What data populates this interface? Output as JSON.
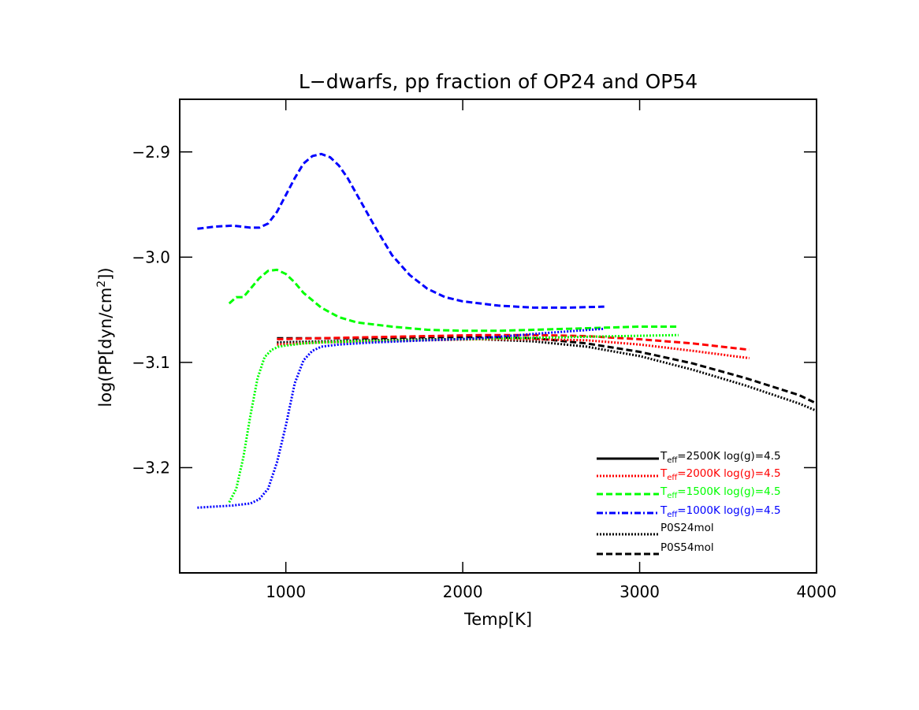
{
  "chart_data": {
    "type": "line",
    "title": "L−dwarfs, pp fraction of OP24 and OP54",
    "xlabel": "Temp[K]",
    "ylabel_parts": {
      "main": "log(PP[dyn/cm",
      "sup": "2",
      "end": "])"
    },
    "xlim": [
      400,
      4000
    ],
    "ylim": [
      -3.3,
      -2.85
    ],
    "xticks": [
      1000,
      2000,
      3000,
      4000
    ],
    "xtick_labels": [
      "1000",
      "2000",
      "3000",
      "4000"
    ],
    "yticks": [
      -3.2,
      -3.1,
      -3.0,
      -2.9
    ],
    "ytick_labels": [
      "−3.2",
      "−3.1",
      "−3.0",
      "−2.9"
    ],
    "grid": false,
    "legend_position": "bottom-right",
    "series": [
      {
        "name": "P0S24mol",
        "model": "2500K",
        "color": "#000000",
        "style": "dotted",
        "x": [
          950,
          1200,
          1500,
          1800,
          2100,
          2400,
          2700,
          3000,
          3300,
          3600,
          3900,
          4000
        ],
        "y": [
          -3.081,
          -3.08,
          -3.079,
          -3.078,
          -3.078,
          -3.08,
          -3.085,
          -3.094,
          -3.107,
          -3.122,
          -3.139,
          -3.146
        ]
      },
      {
        "name": "P0S54mol",
        "model": "2500K",
        "color": "#000000",
        "style": "dashed",
        "x": [
          950,
          1200,
          1500,
          1800,
          2100,
          2400,
          2700,
          3000,
          3300,
          3600,
          3900,
          4000
        ],
        "y": [
          -3.077,
          -3.077,
          -3.077,
          -3.076,
          -3.076,
          -3.077,
          -3.082,
          -3.09,
          -3.101,
          -3.115,
          -3.131,
          -3.139
        ]
      },
      {
        "name": "P0S24mol",
        "model": "2000K",
        "color": "#ff0000",
        "style": "dotted",
        "x": [
          950,
          1200,
          1500,
          1800,
          2100,
          2400,
          2700,
          3000,
          3300,
          3620
        ],
        "y": [
          -3.083,
          -3.081,
          -3.08,
          -3.079,
          -3.078,
          -3.078,
          -3.079,
          -3.083,
          -3.089,
          -3.096
        ]
      },
      {
        "name": "P0S54mol",
        "model": "2000K",
        "color": "#ff0000",
        "style": "dashed",
        "x": [
          950,
          1200,
          1500,
          1800,
          2100,
          2400,
          2700,
          3000,
          3300,
          3620
        ],
        "y": [
          -3.078,
          -3.077,
          -3.076,
          -3.075,
          -3.074,
          -3.074,
          -3.075,
          -3.078,
          -3.082,
          -3.088
        ]
      },
      {
        "name": "P0S24mol",
        "model": "1500K",
        "color": "#00ff00",
        "style": "dotted",
        "x": [
          680,
          720,
          760,
          800,
          840,
          880,
          920,
          960,
          1000,
          1050,
          1100,
          1200,
          1400,
          1700,
          2000,
          2300,
          2600,
          2900,
          3220
        ],
        "y": [
          -3.233,
          -3.22,
          -3.19,
          -3.15,
          -3.115,
          -3.095,
          -3.088,
          -3.085,
          -3.084,
          -3.083,
          -3.082,
          -3.081,
          -3.08,
          -3.079,
          -3.078,
          -3.077,
          -3.076,
          -3.075,
          -3.074
        ]
      },
      {
        "name": "P0S54mol",
        "model": "1500K",
        "color": "#00ff00",
        "style": "dashed",
        "x": [
          680,
          720,
          760,
          800,
          850,
          900,
          950,
          1000,
          1050,
          1100,
          1200,
          1300,
          1400,
          1600,
          1800,
          2000,
          2200,
          2400,
          2600,
          2800,
          3000,
          3220
        ],
        "y": [
          -3.044,
          -3.038,
          -3.038,
          -3.03,
          -3.02,
          -3.013,
          -3.012,
          -3.016,
          -3.024,
          -3.034,
          -3.048,
          -3.057,
          -3.062,
          -3.066,
          -3.069,
          -3.07,
          -3.07,
          -3.069,
          -3.068,
          -3.067,
          -3.066,
          -3.066
        ]
      },
      {
        "name": "P0S24mol",
        "model": "1000K",
        "color": "#0000ff",
        "style": "dotted",
        "x": [
          500,
          600,
          700,
          800,
          850,
          900,
          950,
          1000,
          1050,
          1100,
          1150,
          1200,
          1300,
          1500,
          1800,
          2100,
          2400,
          2800
        ],
        "y": [
          -3.238,
          -3.237,
          -3.236,
          -3.234,
          -3.23,
          -3.22,
          -3.195,
          -3.16,
          -3.12,
          -3.098,
          -3.089,
          -3.085,
          -3.083,
          -3.081,
          -3.079,
          -3.077,
          -3.073,
          -3.068
        ]
      },
      {
        "name": "P0S54mol",
        "model": "1000K",
        "color": "#0000ff",
        "style": "dashed",
        "x": [
          500,
          600,
          700,
          800,
          850,
          900,
          950,
          1000,
          1050,
          1100,
          1150,
          1200,
          1250,
          1300,
          1350,
          1400,
          1500,
          1600,
          1700,
          1800,
          1900,
          2000,
          2200,
          2400,
          2600,
          2800
        ],
        "y": [
          -2.973,
          -2.971,
          -2.97,
          -2.972,
          -2.972,
          -2.968,
          -2.957,
          -2.941,
          -2.925,
          -2.911,
          -2.904,
          -2.902,
          -2.905,
          -2.913,
          -2.925,
          -2.94,
          -2.97,
          -2.998,
          -3.017,
          -3.03,
          -3.038,
          -3.042,
          -3.046,
          -3.048,
          -3.048,
          -3.047
        ]
      }
    ],
    "legend": [
      {
        "prefix": "T",
        "sub": "eff",
        "label": "=2500K  log(g)=4.5",
        "color": "#000000",
        "text_color": "#000000",
        "style": "solid"
      },
      {
        "prefix": "T",
        "sub": "eff",
        "label": "=2000K  log(g)=4.5",
        "color": "#ff0000",
        "text_color": "#ff0000",
        "style": "dotted"
      },
      {
        "prefix": "T",
        "sub": "eff",
        "label": "=1500K  log(g)=4.5",
        "color": "#00ff00",
        "text_color": "#00ff00",
        "style": "dashed"
      },
      {
        "prefix": "T",
        "sub": "eff",
        "label": "=1000K  log(g)=4.5",
        "color": "#0000ff",
        "text_color": "#0000ff",
        "style": "dashdot"
      },
      {
        "prefix": "",
        "sub": "",
        "label": "P0S24mol",
        "color": "#000000",
        "text_color": "#000000",
        "style": "dotted"
      },
      {
        "prefix": "",
        "sub": "",
        "label": "P0S54mol",
        "color": "#000000",
        "text_color": "#000000",
        "style": "dashed"
      }
    ]
  }
}
